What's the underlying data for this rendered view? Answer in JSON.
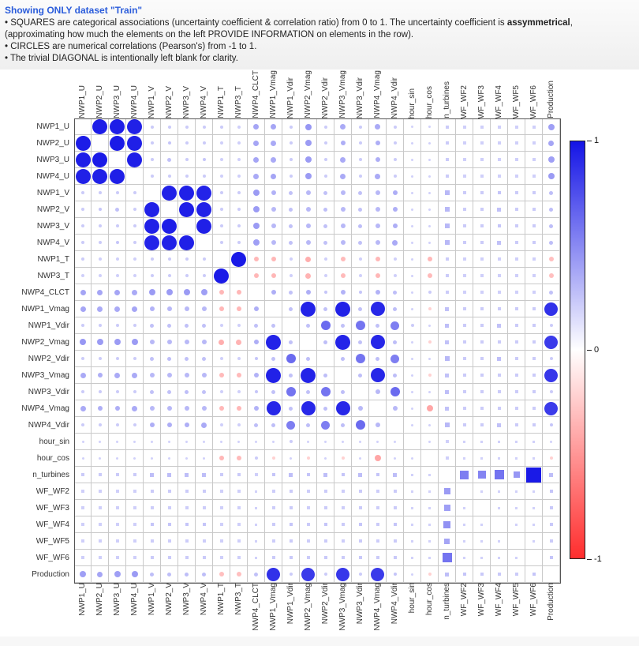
{
  "header": {
    "title": "Showing ONLY dataset \"Train\"",
    "bullets": {
      "squares_prefix": "• SQUARES are categorical associations (uncertainty coefficient & correlation ratio) from 0 to 1. The uncertainty coefficient is ",
      "squares_bold": "assymmetrical",
      "squares_suffix": ", (approximating how much the elements on the left PROVIDE INFORMATION on elements in the row).",
      "circles": "• CIRCLES are numerical correlations (Pearson's) from -1 to 1.",
      "diagonal": "• The trivial DIAGONAL is intentionally left blank for clarity."
    }
  },
  "colors": {
    "title_blue": "#2a5cdb",
    "positive": "#1414e6",
    "negative": "#ff2d2d"
  },
  "colorbar": {
    "ticks": [
      "1",
      "0",
      "-1"
    ]
  },
  "chart_data": {
    "type": "heatmap",
    "value_range": [
      -1,
      1
    ],
    "marker_shapes": {
      "circle": "numerical correlation (Pearson's)",
      "square": "categorical association (uncertainty coefficient & correlation ratio)"
    },
    "variables": [
      "NWP1_U",
      "NWP2_U",
      "NWP3_U",
      "NWP4_U",
      "NWP1_V",
      "NWP2_V",
      "NWP3_V",
      "NWP4_V",
      "NWP1_T",
      "NWP3_T",
      "NWP4_CLCT",
      "NWP1_Vmag",
      "NWP1_Vdir",
      "NWP2_Vmag",
      "NWP2_Vdir",
      "NWP3_Vmag",
      "NWP3_Vdir",
      "NWP4_Vmag",
      "NWP4_Vdir",
      "hour_sin",
      "hour_cos",
      "n_turbines",
      "WF_WF2",
      "WF_WF3",
      "WF_WF4",
      "WF_WF5",
      "WF_WF6",
      "Production"
    ],
    "categorical": [
      "n_turbines",
      "WF_WF2",
      "WF_WF3",
      "WF_WF4",
      "WF_WF5",
      "WF_WF6"
    ],
    "matrix": [
      [
        null,
        0.96,
        0.95,
        0.93,
        0.05,
        0.05,
        0.05,
        0.05,
        0.05,
        0.03,
        0.25,
        0.25,
        0.05,
        0.32,
        0.05,
        0.22,
        0.05,
        0.22,
        0.05,
        0.02,
        0.02,
        0.05,
        0.03,
        0.03,
        0.03,
        0.03,
        0.03,
        0.28
      ],
      [
        0.96,
        null,
        0.97,
        0.94,
        0.05,
        0.08,
        0.05,
        0.05,
        0.03,
        0.03,
        0.25,
        0.22,
        0.05,
        0.3,
        0.05,
        0.2,
        0.05,
        0.2,
        0.05,
        0.02,
        0.02,
        0.05,
        0.03,
        0.03,
        0.03,
        0.03,
        0.03,
        0.25
      ],
      [
        0.95,
        0.97,
        null,
        0.95,
        0.05,
        0.1,
        0.05,
        0.08,
        0.03,
        0.03,
        0.25,
        0.22,
        0.05,
        0.3,
        0.05,
        0.22,
        0.05,
        0.2,
        0.05,
        0.02,
        0.02,
        0.05,
        0.03,
        0.03,
        0.03,
        0.03,
        0.03,
        0.28
      ],
      [
        0.93,
        0.94,
        0.95,
        null,
        0.05,
        0.05,
        0.05,
        0.05,
        0.03,
        0.03,
        0.22,
        0.25,
        0.05,
        0.3,
        0.05,
        0.22,
        0.05,
        0.22,
        0.05,
        0.02,
        0.02,
        0.05,
        0.03,
        0.03,
        0.03,
        0.03,
        0.03,
        0.3
      ],
      [
        0.05,
        0.05,
        0.05,
        0.05,
        null,
        0.93,
        0.94,
        0.92,
        0.05,
        0.05,
        0.3,
        0.18,
        0.1,
        0.15,
        0.1,
        0.15,
        0.1,
        0.15,
        0.2,
        0.02,
        0.02,
        0.15,
        0.05,
        0.05,
        0.08,
        0.05,
        0.05,
        0.12
      ],
      [
        0.05,
        0.08,
        0.1,
        0.05,
        0.93,
        null,
        0.95,
        0.93,
        0.05,
        0.05,
        0.3,
        0.15,
        0.1,
        0.15,
        0.12,
        0.15,
        0.1,
        0.15,
        0.2,
        0.02,
        0.02,
        0.15,
        0.05,
        0.05,
        0.1,
        0.05,
        0.05,
        0.12
      ],
      [
        0.05,
        0.05,
        0.05,
        0.05,
        0.94,
        0.95,
        null,
        0.94,
        0.05,
        0.05,
        0.3,
        0.15,
        0.1,
        0.15,
        0.1,
        0.15,
        0.12,
        0.15,
        0.2,
        0.02,
        0.02,
        0.15,
        0.05,
        0.05,
        0.08,
        0.05,
        0.05,
        0.12
      ],
      [
        0.05,
        0.05,
        0.08,
        0.05,
        0.92,
        0.93,
        0.94,
        null,
        0.05,
        0.05,
        0.28,
        0.15,
        0.1,
        0.15,
        0.1,
        0.15,
        0.1,
        0.15,
        0.22,
        0.02,
        0.02,
        0.15,
        0.05,
        0.05,
        0.1,
        0.05,
        0.05,
        0.12
      ],
      [
        0.05,
        0.03,
        0.03,
        0.03,
        0.05,
        0.05,
        0.05,
        0.05,
        null,
        0.97,
        -0.2,
        -0.2,
        0.03,
        -0.25,
        0.03,
        -0.18,
        0.03,
        -0.2,
        0.03,
        0.02,
        -0.2,
        0.05,
        0.03,
        0.03,
        0.03,
        0.03,
        0.03,
        -0.15
      ],
      [
        0.03,
        0.03,
        0.03,
        0.03,
        0.05,
        0.05,
        0.05,
        0.05,
        0.97,
        null,
        -0.2,
        -0.2,
        0.03,
        -0.22,
        0.03,
        -0.18,
        0.03,
        -0.2,
        0.03,
        0.02,
        -0.18,
        0.05,
        0.03,
        0.03,
        0.03,
        0.03,
        0.03,
        -0.15
      ],
      [
        0.25,
        0.25,
        0.25,
        0.22,
        0.3,
        0.3,
        0.3,
        0.28,
        -0.2,
        -0.2,
        null,
        0.2,
        0.1,
        0.2,
        0.08,
        0.18,
        0.08,
        0.18,
        0.12,
        0.02,
        0.05,
        0.05,
        0.03,
        0.03,
        0.03,
        0.03,
        0.03,
        0.1
      ],
      [
        0.25,
        0.22,
        0.22,
        0.25,
        0.18,
        0.15,
        0.15,
        0.15,
        -0.2,
        -0.2,
        0.2,
        null,
        0.1,
        0.92,
        0.1,
        0.93,
        0.1,
        0.9,
        0.12,
        0.02,
        -0.05,
        0.1,
        0.05,
        0.05,
        0.05,
        0.05,
        0.05,
        0.85
      ],
      [
        0.05,
        0.05,
        0.05,
        0.05,
        0.1,
        0.1,
        0.1,
        0.1,
        0.03,
        0.03,
        0.1,
        0.1,
        null,
        0.1,
        0.55,
        0.1,
        0.5,
        0.1,
        0.45,
        0.05,
        0.02,
        0.12,
        0.05,
        0.05,
        0.1,
        0.05,
        0.05,
        0.05
      ],
      [
        0.32,
        0.3,
        0.3,
        0.3,
        0.15,
        0.15,
        0.15,
        0.15,
        -0.25,
        -0.22,
        0.2,
        0.92,
        0.1,
        null,
        0.12,
        0.92,
        0.1,
        0.9,
        0.12,
        0.02,
        -0.05,
        0.1,
        0.05,
        0.05,
        0.05,
        0.05,
        0.05,
        0.8
      ],
      [
        0.05,
        0.05,
        0.05,
        0.05,
        0.1,
        0.12,
        0.1,
        0.1,
        0.03,
        0.03,
        0.08,
        0.1,
        0.55,
        0.12,
        null,
        0.12,
        0.5,
        0.12,
        0.45,
        0.02,
        0.02,
        0.15,
        0.05,
        0.05,
        0.12,
        0.05,
        0.05,
        0.05
      ],
      [
        0.22,
        0.2,
        0.22,
        0.22,
        0.15,
        0.15,
        0.15,
        0.15,
        -0.18,
        -0.18,
        0.18,
        0.93,
        0.1,
        0.92,
        0.12,
        null,
        0.12,
        0.9,
        0.12,
        0.02,
        -0.05,
        0.1,
        0.05,
        0.05,
        0.05,
        0.05,
        0.05,
        0.82
      ],
      [
        0.05,
        0.05,
        0.05,
        0.05,
        0.1,
        0.1,
        0.12,
        0.1,
        0.03,
        0.03,
        0.08,
        0.1,
        0.5,
        0.1,
        0.5,
        0.12,
        null,
        0.15,
        0.55,
        0.02,
        0.02,
        0.12,
        0.05,
        0.05,
        0.05,
        0.05,
        0.05,
        0.05
      ],
      [
        0.22,
        0.2,
        0.2,
        0.22,
        0.15,
        0.15,
        0.15,
        0.15,
        -0.2,
        -0.2,
        0.18,
        0.9,
        0.1,
        0.9,
        0.12,
        0.9,
        0.15,
        null,
        0.15,
        0.02,
        -0.3,
        0.1,
        0.05,
        0.05,
        0.05,
        0.05,
        0.05,
        0.8
      ],
      [
        0.05,
        0.05,
        0.05,
        0.05,
        0.2,
        0.2,
        0.2,
        0.22,
        0.03,
        0.03,
        0.12,
        0.12,
        0.45,
        0.12,
        0.45,
        0.12,
        0.55,
        0.15,
        null,
        0.02,
        0.02,
        0.15,
        0.05,
        0.05,
        0.1,
        0.05,
        0.05,
        0.08
      ],
      [
        0.02,
        0.02,
        0.02,
        0.02,
        0.02,
        0.02,
        0.02,
        0.02,
        0.02,
        0.02,
        0.02,
        0.02,
        0.05,
        0.02,
        0.02,
        0.02,
        0.02,
        0.02,
        0.02,
        null,
        0.02,
        0.03,
        0.02,
        0.02,
        0.02,
        0.02,
        0.02,
        0.02
      ],
      [
        0.02,
        0.02,
        0.02,
        0.02,
        0.02,
        0.02,
        0.02,
        0.02,
        -0.2,
        -0.18,
        0.05,
        -0.05,
        0.02,
        -0.05,
        0.02,
        -0.05,
        0.02,
        -0.3,
        0.02,
        0.02,
        null,
        0.03,
        0.02,
        0.02,
        0.02,
        0.02,
        0.02,
        -0.05
      ],
      [
        0.05,
        0.05,
        0.05,
        0.05,
        0.12,
        0.12,
        0.12,
        0.12,
        0.05,
        0.05,
        0.03,
        0.08,
        0.12,
        0.08,
        0.12,
        0.08,
        0.12,
        0.08,
        0.12,
        0.02,
        0.02,
        null,
        0.45,
        0.42,
        0.5,
        0.32,
        0.97,
        0.12
      ],
      [
        0.03,
        0.03,
        0.03,
        0.03,
        0.05,
        0.05,
        0.05,
        0.05,
        0.03,
        0.03,
        0.02,
        0.04,
        0.05,
        0.04,
        0.05,
        0.04,
        0.05,
        0.04,
        0.05,
        0.02,
        0.02,
        0.3,
        null,
        0.02,
        0.02,
        0.02,
        0.02,
        0.08
      ],
      [
        0.03,
        0.03,
        0.03,
        0.03,
        0.04,
        0.04,
        0.04,
        0.04,
        0.03,
        0.03,
        0.02,
        0.04,
        0.05,
        0.04,
        0.05,
        0.04,
        0.05,
        0.04,
        0.05,
        0.02,
        0.02,
        0.28,
        0.02,
        null,
        0.02,
        0.02,
        0.02,
        0.06
      ],
      [
        0.03,
        0.03,
        0.03,
        0.03,
        0.08,
        0.08,
        0.08,
        0.08,
        0.03,
        0.03,
        0.02,
        0.05,
        0.08,
        0.05,
        0.08,
        0.05,
        0.08,
        0.05,
        0.08,
        0.02,
        0.02,
        0.35,
        0.02,
        0.02,
        null,
        0.02,
        0.02,
        0.06
      ],
      [
        0.03,
        0.03,
        0.03,
        0.03,
        0.04,
        0.04,
        0.04,
        0.04,
        0.03,
        0.03,
        0.02,
        0.04,
        0.05,
        0.04,
        0.05,
        0.04,
        0.05,
        0.04,
        0.05,
        0.02,
        0.02,
        0.25,
        0.02,
        0.02,
        0.02,
        null,
        0.02,
        0.05
      ],
      [
        0.03,
        0.03,
        0.03,
        0.03,
        0.05,
        0.05,
        0.05,
        0.05,
        0.03,
        0.03,
        0.02,
        0.05,
        0.06,
        0.05,
        0.06,
        0.05,
        0.06,
        0.05,
        0.06,
        0.02,
        0.02,
        0.5,
        0.02,
        0.02,
        0.02,
        0.02,
        null,
        0.08
      ],
      [
        0.28,
        0.25,
        0.28,
        0.3,
        0.12,
        0.12,
        0.12,
        0.12,
        -0.15,
        -0.15,
        0.1,
        0.85,
        0.05,
        0.8,
        0.05,
        0.82,
        0.05,
        0.8,
        0.08,
        0.02,
        -0.05,
        0.12,
        0.08,
        0.06,
        0.06,
        0.05,
        0.08,
        null
      ]
    ]
  }
}
